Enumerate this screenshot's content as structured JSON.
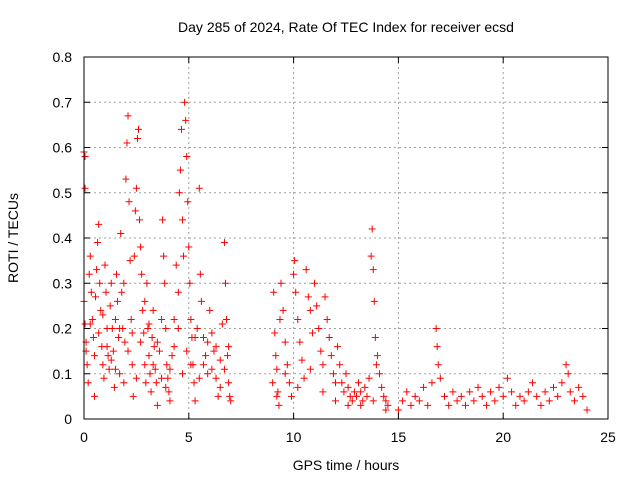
{
  "chart_data": {
    "type": "scatter",
    "title": "Day 285 of 2024, Rate Of TEC Index for receiver ecsd",
    "xlabel": "GPS time / hours",
    "ylabel": "ROTI / TECUs",
    "xlim": [
      0,
      25
    ],
    "ylim": [
      0,
      0.8
    ],
    "xticks": [
      0,
      5,
      10,
      15,
      20,
      25
    ],
    "xtick_labels": [
      "0",
      "5",
      "10",
      "15",
      "20",
      "25"
    ],
    "yticks": [
      0,
      0.1,
      0.2,
      0.3,
      0.4,
      0.5,
      0.6,
      0.7,
      0.8
    ],
    "ytick_labels": [
      "0",
      "0.1",
      "0.2",
      "0.3",
      "0.4",
      "0.5",
      "0.6",
      "0.7",
      "0.8"
    ],
    "grid": true,
    "marker": "+",
    "color": "#ff0000",
    "series": [
      {
        "name": "ROTI",
        "points": [
          [
            0.0,
            0.59
          ],
          [
            0.05,
            0.58
          ],
          [
            0.05,
            0.51
          ],
          [
            0.0,
            0.26
          ],
          [
            0.05,
            0.21
          ],
          [
            0.1,
            0.15
          ],
          [
            0.15,
            0.12
          ],
          [
            0.2,
            0.08
          ],
          [
            0.25,
            0.32
          ],
          [
            0.3,
            0.36
          ],
          [
            0.35,
            0.28
          ],
          [
            0.4,
            0.22
          ],
          [
            0.45,
            0.18
          ],
          [
            0.5,
            0.05
          ],
          [
            0.55,
            0.27
          ],
          [
            0.6,
            0.33
          ],
          [
            0.65,
            0.39
          ],
          [
            0.7,
            0.43
          ],
          [
            0.75,
            0.3
          ],
          [
            0.8,
            0.24
          ],
          [
            0.85,
            0.16
          ],
          [
            0.9,
            0.12
          ],
          [
            0.95,
            0.09
          ],
          [
            1.0,
            0.34
          ],
          [
            1.05,
            0.28
          ],
          [
            1.1,
            0.2
          ],
          [
            1.15,
            0.14
          ],
          [
            1.2,
            0.11
          ],
          [
            1.25,
            0.25
          ],
          [
            1.3,
            0.3
          ],
          [
            1.35,
            0.2
          ],
          [
            1.4,
            0.15
          ],
          [
            1.45,
            0.07
          ],
          [
            1.5,
            0.22
          ],
          [
            1.55,
            0.32
          ],
          [
            1.6,
            0.26
          ],
          [
            1.65,
            0.18
          ],
          [
            1.7,
            0.1
          ],
          [
            1.75,
            0.41
          ],
          [
            1.8,
            0.28
          ],
          [
            1.85,
            0.2
          ],
          [
            1.9,
            0.3
          ],
          [
            1.95,
            0.17
          ],
          [
            2.0,
            0.53
          ],
          [
            2.05,
            0.61
          ],
          [
            2.1,
            0.67
          ],
          [
            2.15,
            0.48
          ],
          [
            2.2,
            0.35
          ],
          [
            2.25,
            0.22
          ],
          [
            2.3,
            0.12
          ],
          [
            2.35,
            0.05
          ],
          [
            2.4,
            0.36
          ],
          [
            2.45,
            0.46
          ],
          [
            2.5,
            0.51
          ],
          [
            2.55,
            0.62
          ],
          [
            2.6,
            0.64
          ],
          [
            2.65,
            0.44
          ],
          [
            2.7,
            0.38
          ],
          [
            2.75,
            0.32
          ],
          [
            2.8,
            0.24
          ],
          [
            2.85,
            0.19
          ],
          [
            2.9,
            0.12
          ],
          [
            2.95,
            0.08
          ],
          [
            3.0,
            0.3
          ],
          [
            3.05,
            0.2
          ],
          [
            3.1,
            0.14
          ],
          [
            3.15,
            0.1
          ],
          [
            3.2,
            0.06
          ],
          [
            3.25,
            0.18
          ],
          [
            3.3,
            0.24
          ],
          [
            3.35,
            0.16
          ],
          [
            3.4,
            0.11
          ],
          [
            3.45,
            0.08
          ],
          [
            3.5,
            0.03
          ],
          [
            3.6,
            0.15
          ],
          [
            3.7,
            0.22
          ],
          [
            3.75,
            0.44
          ],
          [
            3.8,
            0.36
          ],
          [
            3.85,
            0.3
          ],
          [
            3.9,
            0.2
          ],
          [
            3.95,
            0.12
          ],
          [
            4.0,
            0.09
          ],
          [
            4.05,
            0.06
          ],
          [
            4.1,
            0.04
          ],
          [
            4.2,
            0.14
          ],
          [
            4.3,
            0.22
          ],
          [
            4.4,
            0.34
          ],
          [
            4.5,
            0.28
          ],
          [
            4.55,
            0.5
          ],
          [
            4.6,
            0.55
          ],
          [
            4.65,
            0.64
          ],
          [
            4.7,
            0.44
          ],
          [
            4.75,
            0.36
          ],
          [
            4.8,
            0.7
          ],
          [
            4.85,
            0.66
          ],
          [
            4.9,
            0.58
          ],
          [
            4.95,
            0.48
          ],
          [
            5.0,
            0.38
          ],
          [
            5.05,
            0.3
          ],
          [
            5.1,
            0.22
          ],
          [
            5.15,
            0.18
          ],
          [
            5.2,
            0.12
          ],
          [
            5.25,
            0.08
          ],
          [
            5.3,
            0.04
          ],
          [
            5.4,
            0.2
          ],
          [
            5.5,
            0.51
          ],
          [
            5.55,
            0.32
          ],
          [
            5.6,
            0.26
          ],
          [
            5.7,
            0.18
          ],
          [
            5.8,
            0.14
          ],
          [
            5.9,
            0.1
          ],
          [
            6.0,
            0.24
          ],
          [
            6.1,
            0.19
          ],
          [
            6.2,
            0.15
          ],
          [
            6.3,
            0.09
          ],
          [
            6.4,
            0.05
          ],
          [
            6.5,
            0.13
          ],
          [
            6.6,
            0.21
          ],
          [
            6.7,
            0.39
          ],
          [
            6.75,
            0.3
          ],
          [
            6.8,
            0.22
          ],
          [
            6.85,
            0.14
          ],
          [
            6.9,
            0.08
          ],
          [
            6.95,
            0.05
          ],
          [
            7.0,
            0.04
          ],
          [
            0.1,
            0.17
          ],
          [
            0.3,
            0.21
          ],
          [
            0.5,
            0.14
          ],
          [
            0.7,
            0.19
          ],
          [
            0.9,
            0.23
          ],
          [
            1.1,
            0.16
          ],
          [
            1.3,
            0.13
          ],
          [
            1.5,
            0.11
          ],
          [
            1.7,
            0.2
          ],
          [
            1.9,
            0.08
          ],
          [
            2.1,
            0.15
          ],
          [
            2.3,
            0.19
          ],
          [
            2.5,
            0.09
          ],
          [
            2.7,
            0.17
          ],
          [
            2.9,
            0.26
          ],
          [
            3.1,
            0.21
          ],
          [
            3.3,
            0.12
          ],
          [
            3.5,
            0.17
          ],
          [
            3.7,
            0.09
          ],
          [
            3.9,
            0.07
          ],
          [
            4.1,
            0.11
          ],
          [
            4.3,
            0.16
          ],
          [
            4.5,
            0.2
          ],
          [
            4.7,
            0.1
          ],
          [
            4.9,
            0.15
          ],
          [
            5.1,
            0.12
          ],
          [
            5.3,
            0.18
          ],
          [
            5.5,
            0.09
          ],
          [
            5.7,
            0.12
          ],
          [
            5.9,
            0.17
          ],
          [
            6.1,
            0.11
          ],
          [
            6.3,
            0.16
          ],
          [
            6.5,
            0.07
          ],
          [
            6.7,
            0.11
          ],
          [
            6.9,
            0.16
          ],
          [
            9.0,
            0.08
          ],
          [
            9.05,
            0.28
          ],
          [
            9.1,
            0.19
          ],
          [
            9.15,
            0.14
          ],
          [
            9.2,
            0.11
          ],
          [
            9.25,
            0.06
          ],
          [
            9.3,
            0.03
          ],
          [
            9.35,
            0.22
          ],
          [
            9.4,
            0.3
          ],
          [
            9.5,
            0.24
          ],
          [
            9.6,
            0.17
          ],
          [
            9.7,
            0.12
          ],
          [
            9.8,
            0.08
          ],
          [
            9.9,
            0.05
          ],
          [
            10.0,
            0.32
          ],
          [
            10.05,
            0.35
          ],
          [
            10.1,
            0.28
          ],
          [
            10.2,
            0.22
          ],
          [
            10.3,
            0.17
          ],
          [
            10.4,
            0.13
          ],
          [
            10.5,
            0.09
          ],
          [
            10.6,
            0.33
          ],
          [
            10.7,
            0.27
          ],
          [
            10.8,
            0.24
          ],
          [
            10.9,
            0.19
          ],
          [
            11.0,
            0.3
          ],
          [
            11.1,
            0.25
          ],
          [
            11.2,
            0.2
          ],
          [
            11.3,
            0.15
          ],
          [
            11.4,
            0.12
          ],
          [
            11.5,
            0.27
          ],
          [
            11.6,
            0.22
          ],
          [
            11.7,
            0.18
          ],
          [
            11.8,
            0.14
          ],
          [
            11.9,
            0.1
          ],
          [
            12.0,
            0.08
          ],
          [
            12.1,
            0.16
          ],
          [
            12.2,
            0.12
          ],
          [
            12.3,
            0.08
          ],
          [
            12.4,
            0.06
          ],
          [
            12.5,
            0.1
          ],
          [
            12.6,
            0.07
          ],
          [
            12.7,
            0.05
          ],
          [
            12.8,
            0.04
          ],
          [
            12.9,
            0.06
          ],
          [
            13.0,
            0.05
          ],
          [
            13.1,
            0.08
          ],
          [
            13.2,
            0.06
          ],
          [
            13.3,
            0.04
          ],
          [
            13.4,
            0.07
          ],
          [
            13.5,
            0.05
          ],
          [
            13.6,
            0.09
          ],
          [
            13.7,
            0.36
          ],
          [
            13.75,
            0.42
          ],
          [
            13.8,
            0.33
          ],
          [
            13.85,
            0.26
          ],
          [
            13.9,
            0.18
          ],
          [
            13.95,
            0.12
          ],
          [
            14.0,
            0.14
          ],
          [
            14.1,
            0.1
          ],
          [
            14.2,
            0.07
          ],
          [
            14.3,
            0.05
          ],
          [
            14.4,
            0.04
          ],
          [
            14.5,
            0.03
          ],
          [
            9.2,
            0.05
          ],
          [
            9.6,
            0.1
          ],
          [
            10.2,
            0.07
          ],
          [
            10.8,
            0.11
          ],
          [
            11.4,
            0.06
          ],
          [
            12.0,
            0.04
          ],
          [
            12.6,
            0.03
          ],
          [
            13.2,
            0.03
          ],
          [
            13.8,
            0.04
          ],
          [
            14.4,
            0.02
          ],
          [
            15.0,
            0.02
          ],
          [
            15.2,
            0.04
          ],
          [
            15.4,
            0.06
          ],
          [
            15.6,
            0.03
          ],
          [
            15.8,
            0.05
          ],
          [
            16.0,
            0.04
          ],
          [
            16.2,
            0.07
          ],
          [
            16.4,
            0.03
          ],
          [
            16.6,
            0.08
          ],
          [
            16.8,
            0.2
          ],
          [
            16.85,
            0.16
          ],
          [
            16.9,
            0.12
          ],
          [
            17.0,
            0.09
          ],
          [
            17.2,
            0.05
          ],
          [
            17.4,
            0.03
          ],
          [
            17.6,
            0.06
          ],
          [
            17.8,
            0.04
          ],
          [
            18.0,
            0.05
          ],
          [
            18.2,
            0.03
          ],
          [
            18.4,
            0.06
          ],
          [
            18.6,
            0.04
          ],
          [
            18.8,
            0.07
          ],
          [
            19.0,
            0.05
          ],
          [
            19.2,
            0.03
          ],
          [
            19.4,
            0.06
          ],
          [
            19.6,
            0.04
          ],
          [
            19.8,
            0.07
          ],
          [
            20.0,
            0.05
          ],
          [
            20.2,
            0.09
          ],
          [
            20.4,
            0.06
          ],
          [
            20.6,
            0.03
          ],
          [
            20.8,
            0.05
          ],
          [
            21.0,
            0.04
          ],
          [
            21.2,
            0.06
          ],
          [
            21.4,
            0.08
          ],
          [
            21.6,
            0.05
          ],
          [
            21.8,
            0.03
          ],
          [
            22.0,
            0.06
          ],
          [
            22.2,
            0.04
          ],
          [
            22.4,
            0.07
          ],
          [
            22.6,
            0.05
          ],
          [
            22.8,
            0.08
          ],
          [
            23.0,
            0.12
          ],
          [
            23.1,
            0.1
          ],
          [
            23.2,
            0.06
          ],
          [
            23.4,
            0.04
          ],
          [
            23.6,
            0.07
          ],
          [
            23.8,
            0.05
          ],
          [
            24.0,
            0.02
          ]
        ]
      }
    ]
  }
}
